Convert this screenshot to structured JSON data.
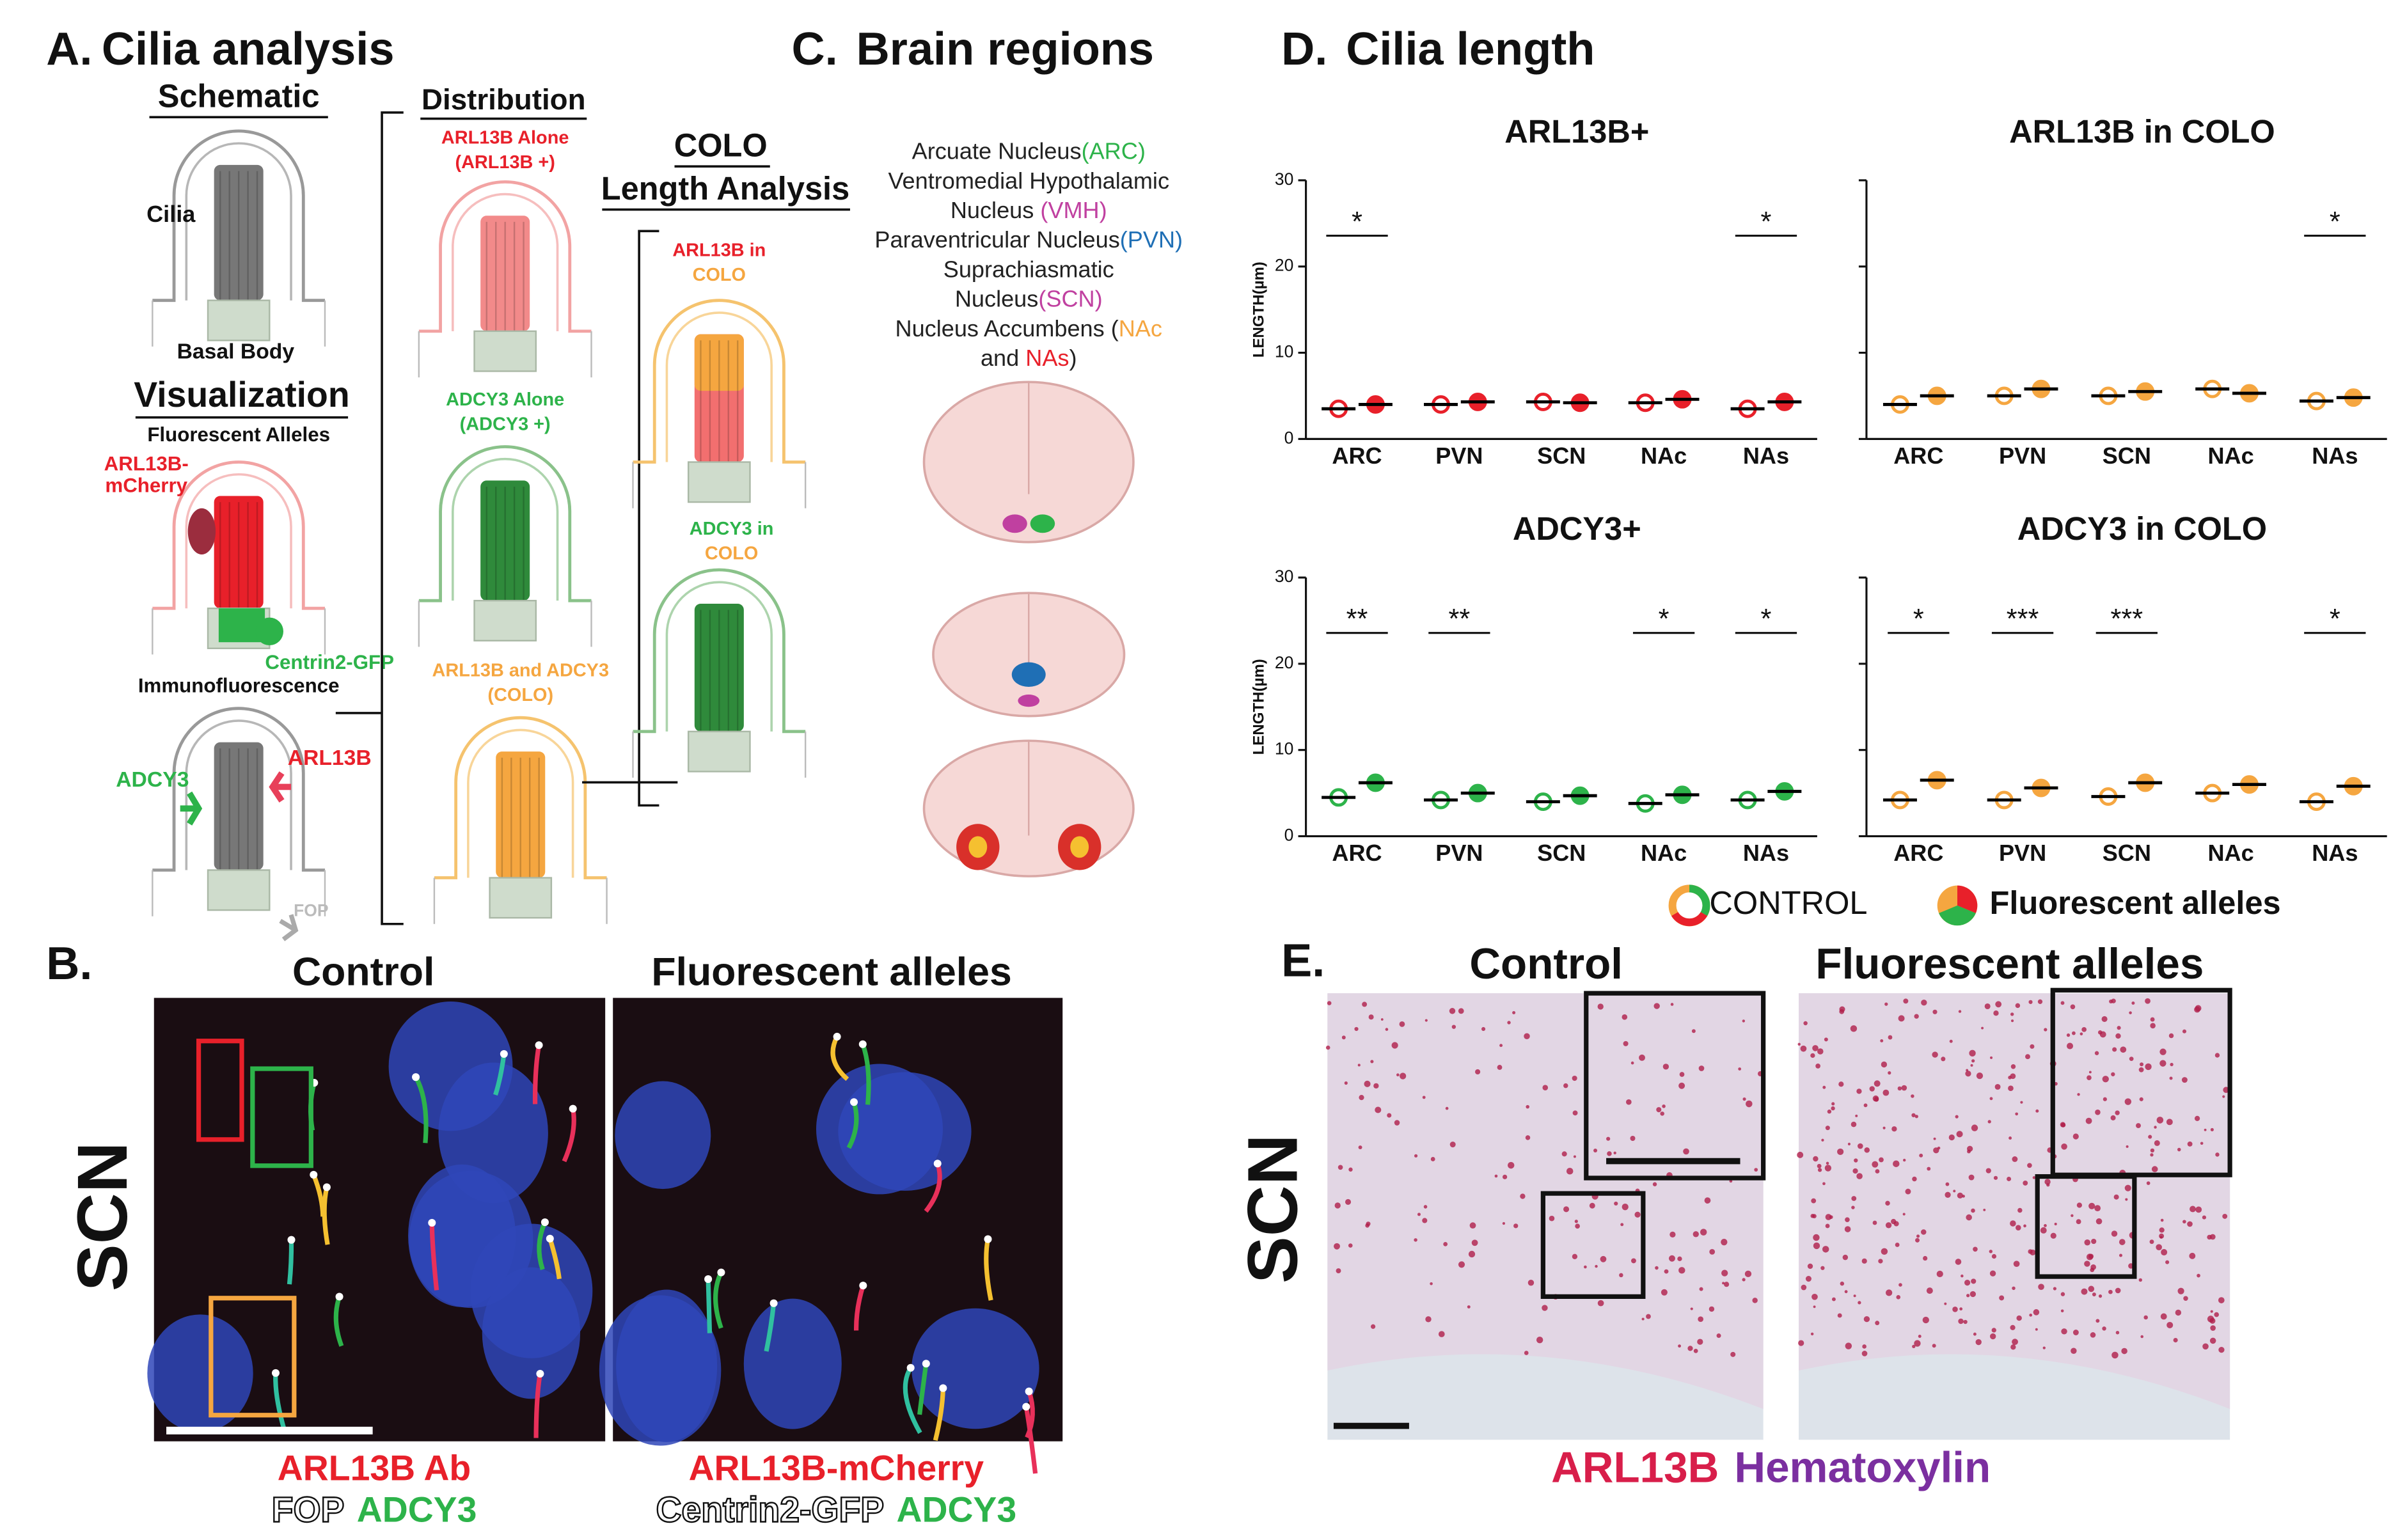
{
  "panel_a": {
    "label": "A.",
    "title": "Cilia analysis",
    "schematic": "Schematic",
    "cilia": "Cilia",
    "basal_body": "Basal Body",
    "visualization": "Visualization",
    "fluorescent_alleles": "Fluorescent Alleles",
    "mcherry": [
      "ARL13B-",
      "mCherry"
    ],
    "centrin": "Centrin2-GFP",
    "immuno": "Immunofluorescence",
    "adcy3": "ADCY3",
    "arl13b": "ARL13B",
    "fop": "FOP",
    "distribution": "Distribution",
    "arl13b_alone": [
      "ARL13B Alone",
      "(ARL13B +)"
    ],
    "adcy3_alone": [
      "ADCY3 Alone",
      "(ADCY3 +)"
    ],
    "colo": [
      "ARL13B and ADCY3",
      "(COLO)"
    ],
    "colo_title": [
      "COLO",
      "Length Analysis"
    ],
    "arl13b_colo": [
      "ARL13B in",
      "COLO"
    ],
    "adcy3_colo": [
      "ADCY3 in",
      "COLO"
    ]
  },
  "panel_c": {
    "label": "C.",
    "title": "Brain regions",
    "lines": [
      [
        {
          "text": "Arcuate Nucleus",
          "color": "#222"
        },
        {
          "text": "(ARC)",
          "color": "#2db34a"
        }
      ],
      [
        {
          "text": "Ventromedial Hypothalamic",
          "color": "#222"
        }
      ],
      [
        {
          "text": "Nucleus ",
          "color": "#222"
        },
        {
          "text": "(VMH)",
          "color": "#c040a0"
        }
      ],
      [
        {
          "text": "Paraventricular Nucleus",
          "color": "#222"
        },
        {
          "text": "(PVN)",
          "color": "#1f6fb5"
        }
      ],
      [
        {
          "text": "Suprachiasmatic",
          "color": "#222"
        }
      ],
      [
        {
          "text": "Nucleus",
          "color": "#222"
        },
        {
          "text": "(SCN)",
          "color": "#c040a0"
        }
      ],
      [
        {
          "text": "Nucleus Accumbens (",
          "color": "#222"
        },
        {
          "text": "NAc",
          "color": "#f5a640"
        }
      ],
      [
        {
          "text": "and ",
          "color": "#222"
        },
        {
          "text": "NAs",
          "color": "#e8202a"
        },
        {
          "text": ")",
          "color": "#222"
        }
      ]
    ]
  },
  "panel_d": {
    "label": "D.",
    "title": "Cilia length"
  },
  "chart_data": [
    {
      "type": "scatter",
      "title": "ARL13B+",
      "ylabel": "LENGTH(µm)",
      "ylim": [
        0,
        30
      ],
      "yticks": [
        0,
        10,
        20,
        30
      ],
      "tick_labels": true,
      "categories": [
        "ARC",
        "PVN",
        "SCN",
        "NAc",
        "NAs"
      ],
      "series": [
        {
          "name": "CONTROL",
          "color": "#e8202a",
          "marker": "open",
          "values": [
            3.5,
            4,
            4.3,
            4.2,
            3.5
          ]
        },
        {
          "name": "Fluorescent alleles",
          "color": "#e8202a",
          "marker": "filled",
          "values": [
            4,
            4.3,
            4.2,
            4.6,
            4.3
          ]
        }
      ],
      "significance": [
        {
          "category": 0,
          "label": "*"
        },
        {
          "category": 4,
          "label": "*"
        }
      ]
    },
    {
      "type": "scatter",
      "title": "ARL13B in COLO",
      "ylim": [
        0,
        30
      ],
      "yticks": [
        0,
        10,
        20,
        30
      ],
      "tick_labels": false,
      "categories": [
        "ARC",
        "PVN",
        "SCN",
        "NAc",
        "NAs"
      ],
      "series": [
        {
          "color": "#f5a640",
          "marker": "open",
          "values": [
            4,
            5,
            5,
            5.8,
            4.4
          ]
        },
        {
          "color": "#f5a640",
          "marker": "filled",
          "values": [
            5,
            5.8,
            5.5,
            5.3,
            4.8
          ]
        }
      ],
      "significance": [
        {
          "category": 4,
          "label": "*"
        }
      ]
    },
    {
      "type": "scatter",
      "title": "ADCY3+",
      "ylabel": "LENGTH(µm)",
      "ylim": [
        0,
        30
      ],
      "yticks": [
        0,
        10,
        20,
        30
      ],
      "tick_labels": true,
      "categories": [
        "ARC",
        "PVN",
        "SCN",
        "NAc",
        "NAs"
      ],
      "series": [
        {
          "color": "#2db34a",
          "marker": "open",
          "values": [
            4.5,
            4.2,
            4,
            3.8,
            4.2
          ]
        },
        {
          "color": "#2db34a",
          "marker": "filled",
          "values": [
            6.2,
            5,
            4.7,
            4.8,
            5.2
          ]
        }
      ],
      "significance": [
        {
          "category": 0,
          "label": "**"
        },
        {
          "category": 1,
          "label": "**"
        },
        {
          "category": 3,
          "label": "*"
        },
        {
          "category": 4,
          "label": "*"
        }
      ]
    },
    {
      "type": "scatter",
      "title": "ADCY3 in COLO",
      "ylim": [
        0,
        30
      ],
      "yticks": [
        0,
        10,
        20,
        30
      ],
      "tick_labels": false,
      "categories": [
        "ARC",
        "PVN",
        "SCN",
        "NAc",
        "NAs"
      ],
      "series": [
        {
          "color": "#f5a640",
          "marker": "open",
          "values": [
            4.2,
            4.2,
            4.6,
            5,
            4
          ]
        },
        {
          "color": "#f5a640",
          "marker": "filled",
          "values": [
            6.5,
            5.6,
            6.2,
            6,
            5.8
          ]
        }
      ],
      "significance": [
        {
          "category": 0,
          "label": "*"
        },
        {
          "category": 1,
          "label": "***"
        },
        {
          "category": 2,
          "label": "***"
        },
        {
          "category": 4,
          "label": "*"
        }
      ]
    }
  ],
  "panel_b": {
    "label": "B.",
    "control": "Control",
    "fluorescent": "Fluorescent alleles",
    "region": "SCN",
    "caption_left": [
      [
        {
          "text": "ARL13B Ab",
          "color": "#e8202a"
        }
      ],
      [
        {
          "text": "FOP",
          "color": "#ffffff"
        },
        {
          "text": "ADCY3",
          "color": "#2db34a"
        }
      ]
    ],
    "caption_right": [
      [
        {
          "text": "ARL13B-mCherry",
          "color": "#e8202a"
        }
      ],
      [
        {
          "text": "Centrin2-GFP",
          "color": "#ffffff"
        },
        {
          "text": "ADCY3",
          "color": "#2db34a"
        }
      ]
    ]
  },
  "panel_e": {
    "label": "E.",
    "control": "Control",
    "fluorescent": "Fluorescent alleles",
    "region": "SCN",
    "caption": [
      {
        "text": "ARL13B",
        "color": "#d81e4a"
      },
      {
        "text": "Hematoxylin",
        "color": "#7b2fa0"
      }
    ]
  }
}
